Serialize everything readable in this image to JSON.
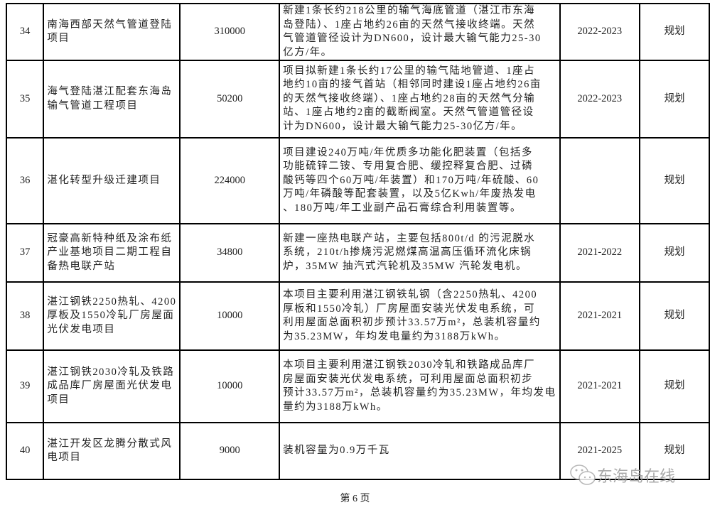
{
  "rows": [
    {
      "no": "34",
      "name": [
        "南海西部天然气管道登陆",
        "项目"
      ],
      "investment": "310000",
      "desc": [
        "新建1条长约218公里的输气海底管道（湛江市东海",
        "岛登陆）、1座占地约26亩的天然气接收终端。天然",
        "气管道管径设计为DN600，设计最大输气能力25-30",
        "亿方/年。"
      ],
      "period": "2022-2023",
      "status": "规划"
    },
    {
      "no": "35",
      "name": [
        "海气登陆湛江配套东海岛",
        "输气管道工程项目"
      ],
      "investment": "50200",
      "desc": [
        "项目拟新建1条长约17公里的输气陆地管道、1座占",
        "地约10亩的接气首站（相邻同时建设1座占地约26亩",
        "的天然气接收终端）、1座占地约28亩的天然气分输",
        "站、1座占地约2亩的截断阀室。天然气管道管径设",
        "计为DN600，设计最大输气能力25-30亿方/年。"
      ],
      "period": "2022-2023",
      "status": "规划"
    },
    {
      "no": "36",
      "name": [
        "湛化转型升级迁建项目"
      ],
      "investment": "224000",
      "desc": [
        "项目建设240万吨/年优质多功能化肥装置（包括多",
        "功能硫锌二铵、专用复合肥、缓控释复合肥、过磷",
        "酸钙等四个60万吨/年装置）和170万吨/年硫酸、60",
        "万吨/年磷酸等配套装置，以及5亿Kwh/年废热发电",
        "、180万吨/年工业副产品石膏综合利用装置等。"
      ],
      "period": "",
      "status": "规划"
    },
    {
      "no": "37",
      "name": [
        "冠豪高新特种纸及涂布纸",
        "产业基地项目二期工程自",
        "备热电联产站"
      ],
      "investment": "34800",
      "desc": [
        "新建一座热电联产站，主要包括800t/d 的污泥脱水",
        "系统，210t/h掺烧污泥燃煤高温高压循环流化床锅",
        "炉，35MW 抽汽式汽轮机及35MW 汽轮发电机。"
      ],
      "period": "2021-2022",
      "status": "规划"
    },
    {
      "no": "38",
      "name": [
        "湛江钢铁2250热轧、4200",
        "厚板及1550冷轧厂房屋面",
        "光伏发电项目"
      ],
      "investment": "10000",
      "desc": [
        "本项目主要利用湛江钢铁轧钢（含2250热轧、4200",
        "厚板和1550冷轧）厂房屋面安装光伏发电系统，可",
        "利用屋面总面积初步预计33.57万m²，总装机容量约",
        "为35.23MW，年均发电量约为3188万kWh。"
      ],
      "period": "2021-2021",
      "status": "规划"
    },
    {
      "no": "39",
      "name": [
        "湛江钢铁2030冷轧及铁路",
        "成品库厂房屋面光伏发电",
        "项目"
      ],
      "investment": "10000",
      "desc": [
        "本项目主要利用湛江钢铁2030冷轧和铁路成品库厂",
        "房屋面安装光伏发电系统，可利用屋面总面积初步",
        "预计33.57万m²，总装机容量约为35.23MW，年均发电",
        "量约为3188万kWh。"
      ],
      "period": "2021-2021",
      "status": "规划"
    },
    {
      "no": "40",
      "name": [
        "湛江开发区龙腾分散式风",
        "电项目"
      ],
      "investment": "9000",
      "desc": [
        "装机容量为0.9万千瓦"
      ],
      "period": "2021-2025",
      "status": "规划"
    }
  ],
  "footer": "第 6 页",
  "watermark": {
    "text": "东海岛在线",
    "icon": "wechat-icon"
  }
}
